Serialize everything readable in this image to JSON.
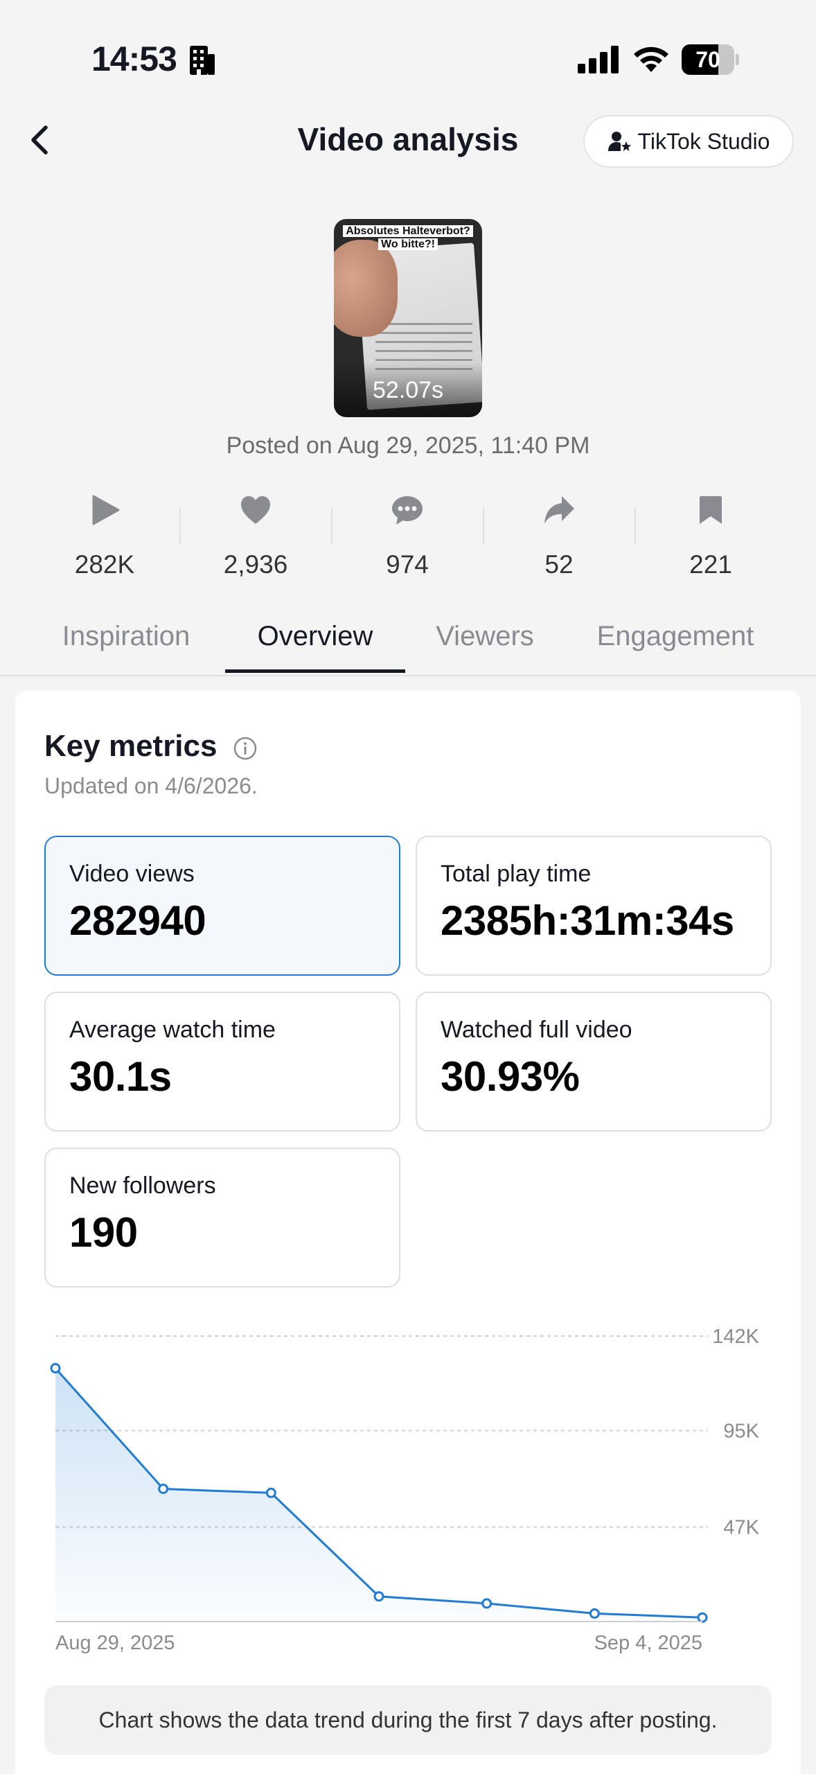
{
  "status_bar": {
    "time": "14:53",
    "battery": "70",
    "battery_level": 0.7,
    "icons": [
      "building-icon",
      "cellular-signal-icon",
      "wifi-icon",
      "battery-icon"
    ]
  },
  "header": {
    "title": "Video analysis",
    "studio_button_label": "TikTok Studio"
  },
  "video": {
    "thumbnail_caption_line1": "Absolutes Halteverbot?",
    "thumbnail_caption_line2": "Wo bitte?!",
    "duration": "52.07s",
    "posted": "Posted on Aug 29, 2025, 11:40 PM"
  },
  "stats": [
    {
      "icon": "play-icon",
      "value": "282K"
    },
    {
      "icon": "heart-icon",
      "value": "2,936"
    },
    {
      "icon": "comment-icon",
      "value": "974"
    },
    {
      "icon": "share-icon",
      "value": "52"
    },
    {
      "icon": "bookmark-icon",
      "value": "221"
    }
  ],
  "tabs": [
    {
      "label": "Inspiration",
      "active": false
    },
    {
      "label": "Overview",
      "active": true
    },
    {
      "label": "Viewers",
      "active": false
    },
    {
      "label": "Engagement",
      "active": false
    }
  ],
  "key_metrics": {
    "title": "Key metrics",
    "updated": "Updated on 4/6/2026.",
    "metrics": [
      {
        "label": "Video views",
        "value": "282940",
        "selected": true
      },
      {
        "label": "Total play time",
        "value": "2385h:31m:34s",
        "selected": false
      },
      {
        "label": "Average watch time",
        "value": "30.1s",
        "selected": false
      },
      {
        "label": "Watched full video",
        "value": "30.93%",
        "selected": false
      },
      {
        "label": "New followers",
        "value": "190",
        "selected": false
      }
    ]
  },
  "chart_data": {
    "type": "area",
    "x": [
      "Aug 29, 2025",
      "Aug 30, 2025",
      "Aug 31, 2025",
      "Sep 1, 2025",
      "Sep 2, 2025",
      "Sep 3, 2025",
      "Sep 4, 2025"
    ],
    "values": [
      126000,
      66000,
      64000,
      12500,
      9000,
      4000,
      2000
    ],
    "x_tick_labels": [
      "Aug 29, 2025",
      "Sep 4, 2025"
    ],
    "y_tick_labels": [
      "142K",
      "95K",
      "47K"
    ],
    "y_ticks": [
      142000,
      95000,
      47000
    ],
    "ylim": [
      0,
      142000
    ],
    "grid": true,
    "color": "#1e7bd6"
  },
  "chart_note": "Chart shows the data trend during the first 7 days after posting."
}
